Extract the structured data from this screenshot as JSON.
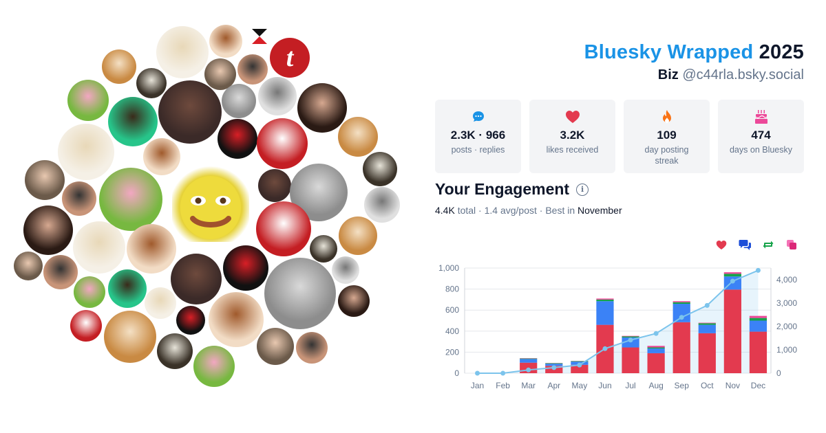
{
  "header": {
    "brand": "Bluesky Wrapped",
    "year": "2025",
    "display_name": "Biz",
    "handle": "@c44rla.bsky.social"
  },
  "stats": [
    {
      "icon": "speech-bubble-icon",
      "value": "2.3K · 966",
      "label": "posts · replies",
      "color": "#1a93e6"
    },
    {
      "icon": "heart-icon",
      "value": "3.2K",
      "label": "likes received",
      "color": "#e33a4f"
    },
    {
      "icon": "flame-icon",
      "value": "109",
      "label": "day posting streak",
      "color": "#f97316"
    },
    {
      "icon": "cake-icon",
      "value": "474",
      "label": "days on Bluesky",
      "color": "#ec4899"
    }
  ],
  "engagement": {
    "title": "Your Engagement",
    "total": "4.4K",
    "total_suffix": " total · ",
    "avg": "1.4 avg/post",
    "best_prefix": " · Best in ",
    "best_month": "November"
  },
  "legend": [
    {
      "icon": "heart-icon",
      "color": "#e33a4f"
    },
    {
      "icon": "reply-bubbles-icon",
      "color": "#1d4ed8"
    },
    {
      "icon": "repost-icon",
      "color": "#16a34a"
    },
    {
      "icon": "quote-icon",
      "color": "#ec4899"
    }
  ],
  "chart_data": {
    "type": "bar",
    "stacked": true,
    "categories": [
      "Jan",
      "Feb",
      "Mar",
      "Apr",
      "May",
      "Jun",
      "Jul",
      "Aug",
      "Sep",
      "Oct",
      "Nov",
      "Dec"
    ],
    "series": [
      {
        "values": [
          0,
          0,
          100,
          70,
          80,
          460,
          245,
          190,
          485,
          380,
          795,
          395
        ],
        "color": "#e33a4f"
      },
      {
        "values": [
          0,
          0,
          35,
          20,
          30,
          225,
          95,
          45,
          175,
          80,
          125,
          105
        ],
        "color": "#3b82f6"
      },
      {
        "values": [
          0,
          0,
          5,
          5,
          5,
          15,
          10,
          10,
          15,
          15,
          25,
          25
        ],
        "color": "#16a34a"
      },
      {
        "values": [
          0,
          0,
          3,
          2,
          2,
          10,
          5,
          15,
          10,
          5,
          15,
          20
        ],
        "color": "#ec4899"
      }
    ],
    "cumulative_line": {
      "values": [
        0,
        0,
        140,
        240,
        350,
        1050,
        1420,
        1700,
        2390,
        2900,
        3940,
        4400
      ],
      "color": "#7cc4ec"
    },
    "ylim": [
      0,
      1000
    ],
    "y_ticks": [
      "0",
      "200",
      "400",
      "600",
      "800",
      "1,000"
    ],
    "y2lim": [
      0,
      4500
    ],
    "y2_ticks": [
      "0",
      "1,000",
      "2,000",
      "3,000",
      "4,000"
    ],
    "grid": true
  },
  "avatars": [
    {
      "color": "#f5f0e6",
      "accent": "#e8d8b8"
    },
    {
      "color": "#f2dcc5",
      "accent": "#a05a2c"
    },
    {
      "color": "#111111",
      "accent": "#d81f26"
    },
    {
      "color": "#c41e23",
      "accent": "#ffffff"
    },
    {
      "color": "#c98a43",
      "accent": "#f4e0c4"
    },
    {
      "color": "#3a3228",
      "accent": "#e6e3d8"
    },
    {
      "color": "#6b5a4a",
      "accent": "#e8c8b0"
    },
    {
      "color": "#c89478",
      "accent": "#333333"
    },
    {
      "color": "#77b840",
      "accent": "#f2a7c2"
    },
    {
      "color": "#27c58a",
      "accent": "#3a2a1a"
    },
    {
      "color": "#3b2a28",
      "accent": "#6e4a3d"
    },
    {
      "color": "#8d8d8d",
      "accent": "#d9d9d9"
    },
    {
      "color": "#e0e0e0",
      "accent": "#777777"
    },
    {
      "color": "#2a1a14",
      "accent": "#d6a890"
    }
  ]
}
